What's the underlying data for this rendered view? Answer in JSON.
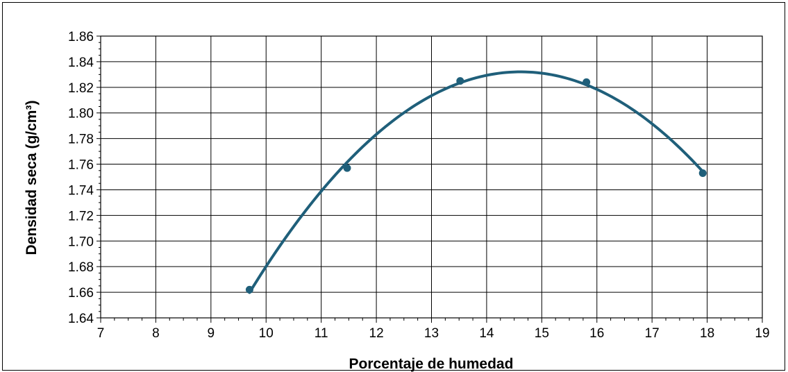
{
  "chart_data": {
    "type": "scatter",
    "title": "",
    "xlabel": "Porcentaje de humedad",
    "ylabel": "Densidad seca (g/cm³)",
    "xlim": [
      7,
      19
    ],
    "ylim": [
      1.64,
      1.86
    ],
    "x_ticks": [
      "7",
      "8",
      "9",
      "10",
      "11",
      "12",
      "13",
      "14",
      "15",
      "16",
      "17",
      "18",
      "19"
    ],
    "y_ticks": [
      "1.64",
      "1.66",
      "1.68",
      "1.70",
      "1.72",
      "1.74",
      "1.76",
      "1.78",
      "1.80",
      "1.82",
      "1.84",
      "1.86"
    ],
    "grid": true,
    "legend": "none",
    "trendline": "polynomial, order 2",
    "series": [
      {
        "x": [
          9.7,
          11.47,
          13.52,
          15.81,
          17.92
        ],
        "y": [
          1.662,
          1.757,
          1.825,
          1.824,
          1.753
        ]
      }
    ],
    "colors": {
      "series": "#1f5f7a",
      "grid": "#000000"
    }
  }
}
